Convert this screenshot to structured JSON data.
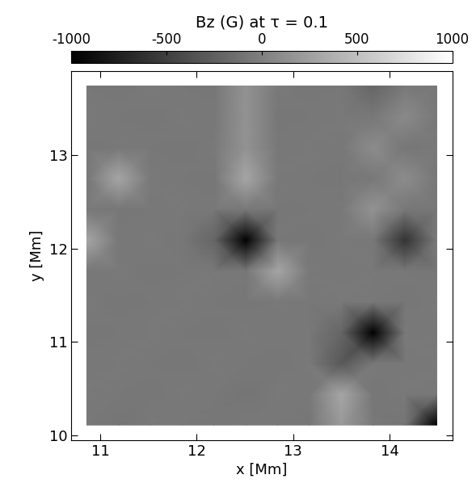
{
  "chart_data": {
    "type": "heatmap",
    "title": "Bz (G) at τ = 0.1",
    "x_label": "x [Mm]",
    "y_label": "y [Mm]",
    "x": [
      10.86,
      11.19,
      11.52,
      11.85,
      12.18,
      12.51,
      12.84,
      13.17,
      13.5,
      13.83,
      14.16,
      14.49
    ],
    "y": [
      10.11,
      10.44,
      10.77,
      11.1,
      11.43,
      11.76,
      12.09,
      12.42,
      12.75,
      13.08,
      13.41,
      13.74
    ],
    "cells": [
      [
        -60,
        -80,
        -50,
        -60,
        -70,
        -50,
        -60,
        -70,
        200,
        -60,
        -80,
        -1000
      ],
      [
        -50,
        -60,
        -70,
        -50,
        -60,
        -80,
        -50,
        -60,
        300,
        -70,
        -50,
        -60
      ],
      [
        -60,
        -50,
        -60,
        -70,
        -50,
        -60,
        -70,
        -50,
        -300,
        -60,
        -60,
        -50
      ],
      [
        -70,
        -60,
        -50,
        -60,
        -70,
        -50,
        -60,
        -60,
        -200,
        -1000,
        -50,
        -60
      ],
      [
        -50,
        -70,
        -60,
        -50,
        -60,
        -70,
        -50,
        -60,
        -50,
        -60,
        -70,
        -50
      ],
      [
        -60,
        -50,
        -70,
        -60,
        -50,
        -60,
        300,
        -50,
        -60,
        -50,
        -60,
        -70
      ],
      [
        300,
        -60,
        -50,
        -70,
        -200,
        -1000,
        -60,
        -70,
        -50,
        -60,
        -600,
        -50
      ],
      [
        -50,
        -70,
        -60,
        -50,
        -60,
        -50,
        -70,
        -60,
        -50,
        150,
        -60,
        -70
      ],
      [
        -60,
        300,
        -50,
        -60,
        -70,
        300,
        -50,
        -60,
        -70,
        -50,
        100,
        -60
      ],
      [
        -70,
        -50,
        -60,
        -70,
        -50,
        150,
        -60,
        -50,
        -60,
        100,
        -70,
        -50
      ],
      [
        -50,
        -60,
        -70,
        -50,
        -60,
        150,
        -70,
        -60,
        -50,
        -60,
        80,
        -60
      ],
      [
        -60,
        -70,
        -50,
        -60,
        -70,
        150,
        -50,
        -70,
        -60,
        -200,
        -50,
        -70
      ]
    ],
    "xlim": [
      10.7,
      14.65
    ],
    "ylim": [
      9.95,
      13.9
    ],
    "xticks": [
      11,
      12,
      13,
      14
    ],
    "yticks": [
      10,
      11,
      12,
      13
    ],
    "colorbar_range": [
      -1000,
      1000
    ],
    "colorbar_ticks": [
      -1000,
      -500,
      0,
      500,
      1000
    ]
  }
}
